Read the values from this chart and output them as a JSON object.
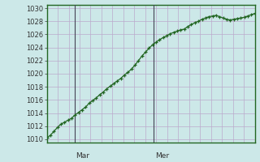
{
  "bg_color": "#cce8e8",
  "grid_color": "#bbaacc",
  "line_color": "#226622",
  "marker_color": "#226622",
  "ylim": [
    1009.5,
    1030.5
  ],
  "yticks": [
    1010,
    1012,
    1014,
    1016,
    1018,
    1020,
    1022,
    1024,
    1026,
    1028,
    1030
  ],
  "day_labels": [
    "Mar",
    "Mer"
  ],
  "day_positions": [
    0.135,
    0.515
  ],
  "n_points": 60,
  "x_values": [
    0,
    1,
    2,
    3,
    4,
    5,
    6,
    7,
    8,
    9,
    10,
    11,
    12,
    13,
    14,
    15,
    16,
    17,
    18,
    19,
    20,
    21,
    22,
    23,
    24,
    25,
    26,
    27,
    28,
    29,
    30,
    31,
    32,
    33,
    34,
    35,
    36,
    37,
    38,
    39,
    40,
    41,
    42,
    43,
    44,
    45,
    46,
    47,
    48,
    49,
    50,
    51,
    52,
    53,
    54,
    55,
    56,
    57,
    58,
    59
  ],
  "y_values": [
    1010.2,
    1010.6,
    1011.2,
    1011.8,
    1012.3,
    1012.6,
    1012.9,
    1013.2,
    1013.7,
    1014.1,
    1014.5,
    1014.9,
    1015.5,
    1015.9,
    1016.3,
    1016.8,
    1017.2,
    1017.7,
    1018.1,
    1018.5,
    1018.9,
    1019.3,
    1019.8,
    1020.2,
    1020.7,
    1021.3,
    1022.0,
    1022.7,
    1023.3,
    1023.9,
    1024.4,
    1024.8,
    1025.2,
    1025.5,
    1025.8,
    1026.1,
    1026.3,
    1026.5,
    1026.7,
    1026.8,
    1027.2,
    1027.5,
    1027.8,
    1028.0,
    1028.3,
    1028.5,
    1028.7,
    1028.8,
    1028.9,
    1028.7,
    1028.5,
    1028.3,
    1028.2,
    1028.3,
    1028.4,
    1028.5,
    1028.6,
    1028.8,
    1029.0,
    1029.2
  ],
  "spine_color": "#226622",
  "tick_labelsize": 6,
  "n_vgrid": 19
}
